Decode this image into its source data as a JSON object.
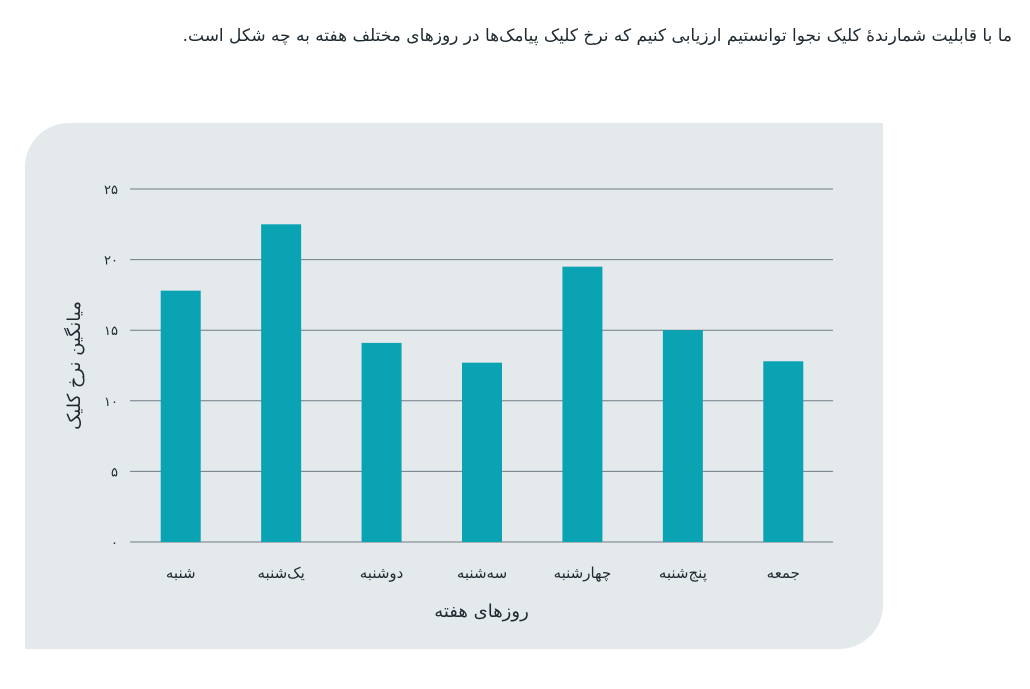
{
  "intro_text": "ما با قابلیت شمارندهٔ کلیک نجوا توانستیم ارزیابی کنیم که نرخ کلیک پیامک‌ها در روزهای مختلف هفته به چه شکل است.",
  "colors": {
    "bar": "#0aa3b3",
    "card_background": "#e4e9ec",
    "grid": "#6f7c85",
    "text": "#1f2a30"
  },
  "chart_data": {
    "type": "bar",
    "categories": [
      "شنبه",
      "یک‌شنبه",
      "دوشنبه",
      "سه‌شنبه",
      "چهارشنبه",
      "پنج‌شنبه",
      "جمعه"
    ],
    "values": [
      17.8,
      22.5,
      14.1,
      12.7,
      19.5,
      15.0,
      12.8
    ],
    "xlabel": "روزهای هفته",
    "ylabel": "میانگین نرخ کلیک",
    "ylim": [
      0,
      25
    ],
    "yticks": [
      0,
      5,
      10,
      15,
      20,
      25
    ],
    "ytick_labels": [
      "۰",
      "۵",
      "۱۰",
      "۱۵",
      "۲۰",
      "۲۵"
    ],
    "grid": true
  }
}
